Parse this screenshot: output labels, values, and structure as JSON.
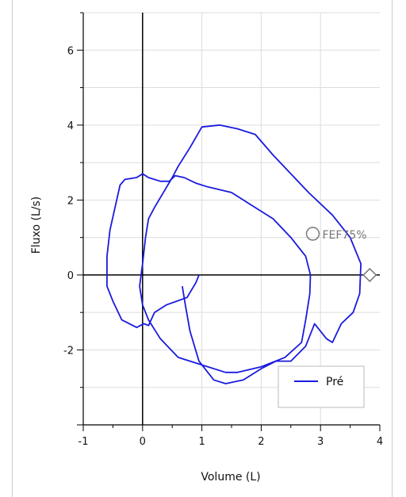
{
  "chart_data": {
    "type": "line",
    "xlabel": "Volume (L)",
    "ylabel": "Fluxo (L/s)",
    "xlim": [
      -1,
      4
    ],
    "ylim": [
      -4,
      7
    ],
    "x_ticks": [
      "-1",
      "0",
      "1",
      "2",
      "3",
      "4"
    ],
    "y_ticks": [
      "-2",
      "0",
      "2",
      "4",
      "6"
    ],
    "grid": true,
    "legend": {
      "placement": "bottom-right",
      "entries": [
        "Pré"
      ]
    },
    "colors": {
      "series": "#1a1adf",
      "grid": "#dddddd",
      "axis": "#000000",
      "marker": "#777777"
    },
    "annotations": [
      {
        "label": "FEF75%",
        "x": 2.87,
        "y": 1.1,
        "marker": "circle"
      },
      {
        "label": "",
        "x": 3.83,
        "y": 0.0,
        "marker": "diamond"
      }
    ],
    "series": [
      {
        "name": "Pré",
        "points": [
          [
            0.95,
            0.0
          ],
          [
            0.9,
            -0.2
          ],
          [
            0.75,
            -0.6
          ],
          [
            0.4,
            -0.8
          ],
          [
            0.2,
            -1.0
          ],
          [
            0.1,
            -1.35
          ],
          [
            0.02,
            -1.3
          ],
          [
            -0.1,
            -1.4
          ],
          [
            -0.35,
            -1.2
          ],
          [
            -0.5,
            -0.7
          ],
          [
            -0.6,
            -0.3
          ],
          [
            -0.6,
            0.5
          ],
          [
            -0.55,
            1.2
          ],
          [
            -0.45,
            1.9
          ],
          [
            -0.38,
            2.4
          ],
          [
            -0.3,
            2.55
          ],
          [
            -0.1,
            2.6
          ],
          [
            0.0,
            2.7
          ],
          [
            0.1,
            2.6
          ],
          [
            0.3,
            2.5
          ],
          [
            0.45,
            2.5
          ],
          [
            0.55,
            2.65
          ],
          [
            0.7,
            2.6
          ],
          [
            0.9,
            2.45
          ],
          [
            1.1,
            2.35
          ],
          [
            1.5,
            2.2
          ],
          [
            1.8,
            1.9
          ],
          [
            2.2,
            1.5
          ],
          [
            2.5,
            1.0
          ],
          [
            2.75,
            0.5
          ],
          [
            2.83,
            0.0
          ],
          [
            2.82,
            -0.5
          ],
          [
            2.75,
            -1.2
          ],
          [
            2.68,
            -1.8
          ],
          [
            2.4,
            -2.2
          ],
          [
            2.0,
            -2.45
          ],
          [
            1.6,
            -2.6
          ],
          [
            1.4,
            -2.6
          ],
          [
            1.0,
            -2.4
          ],
          [
            0.6,
            -2.2
          ],
          [
            0.3,
            -1.7
          ],
          [
            0.1,
            -1.2
          ],
          [
            0.0,
            -0.8
          ],
          [
            -0.05,
            -0.3
          ],
          [
            0.0,
            0.3
          ],
          [
            0.05,
            1.0
          ],
          [
            0.1,
            1.5
          ],
          [
            0.2,
            1.8
          ],
          [
            0.35,
            2.2
          ],
          [
            0.5,
            2.6
          ],
          [
            0.6,
            2.9
          ],
          [
            0.8,
            3.4
          ],
          [
            1.0,
            3.95
          ],
          [
            1.3,
            4.0
          ],
          [
            1.6,
            3.9
          ],
          [
            1.9,
            3.75
          ],
          [
            2.2,
            3.2
          ],
          [
            2.5,
            2.7
          ],
          [
            2.8,
            2.2
          ],
          [
            3.2,
            1.6
          ],
          [
            3.5,
            1.0
          ],
          [
            3.68,
            0.3
          ],
          [
            3.66,
            -0.5
          ],
          [
            3.55,
            -1.0
          ],
          [
            3.35,
            -1.3
          ],
          [
            3.2,
            -1.8
          ],
          [
            3.1,
            -1.7
          ],
          [
            2.9,
            -1.3
          ],
          [
            2.75,
            -1.9
          ],
          [
            2.5,
            -2.3
          ],
          [
            2.25,
            -2.3
          ],
          [
            2.0,
            -2.5
          ],
          [
            1.7,
            -2.8
          ],
          [
            1.4,
            -2.9
          ],
          [
            1.2,
            -2.8
          ],
          [
            0.95,
            -2.3
          ],
          [
            0.8,
            -1.5
          ],
          [
            0.72,
            -0.8
          ],
          [
            0.67,
            -0.3
          ]
        ]
      }
    ]
  }
}
